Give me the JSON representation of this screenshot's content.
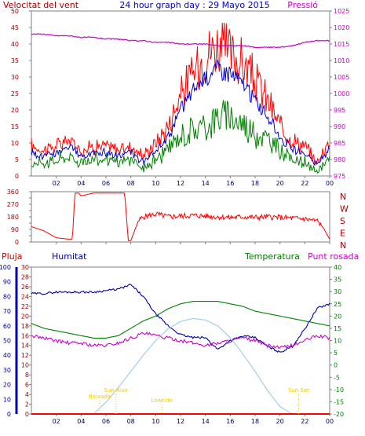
{
  "header": {
    "title": "24 hour graph day : 29 Mayo 2015",
    "left_label": "Velocitat del vent",
    "right_label": "Pressió"
  },
  "colors": {
    "frame": "#808080",
    "wind": "#ff0000",
    "wind_avg": "#0000cc",
    "wind_low": "#008000",
    "pressure": "#cc00cc",
    "direction": "#ff0000",
    "humidity": "#0000aa",
    "temperature": "#008000",
    "dewpoint": "#cc00cc",
    "rain": "#ff0000",
    "solar": "#99ccee",
    "annotation": "#eecc00",
    "title": "#0000cc",
    "dark_red": "#aa0000"
  },
  "chart_data": [
    {
      "id": "wind",
      "type": "line",
      "title": "24 hour graph day : 29 Mayo 2015",
      "x_ticks": [
        "02",
        "04",
        "06",
        "08",
        "10",
        "12",
        "14",
        "16",
        "18",
        "20",
        "22",
        "00"
      ],
      "ylabel_left": "Velocitat del vent",
      "ylim_left": [
        0,
        50
      ],
      "yticks_left": [
        0,
        5,
        10,
        15,
        20,
        25,
        30,
        35,
        40,
        45,
        50
      ],
      "ylabel_right": "Pressió",
      "ylim_right": [
        975,
        1025
      ],
      "yticks_right": [
        975,
        980,
        985,
        990,
        995,
        1000,
        1005,
        1010,
        1015,
        1020,
        1025
      ],
      "x_hours": [
        0,
        1,
        2,
        3,
        4,
        5,
        6,
        7,
        8,
        9,
        10,
        11,
        12,
        13,
        14,
        15,
        16,
        17,
        18,
        19,
        20,
        21,
        22,
        23,
        24
      ],
      "series": [
        {
          "role": "gust",
          "axis": "left",
          "values": [
            9,
            8,
            9,
            11,
            8,
            9,
            9,
            8,
            9,
            6,
            10,
            15,
            25,
            31,
            37,
            40,
            37,
            34,
            29,
            23,
            15,
            11,
            9,
            4,
            11
          ]
        },
        {
          "role": "average",
          "axis": "left",
          "values": [
            7,
            6,
            7,
            9,
            6,
            7,
            7,
            6,
            7,
            4,
            7,
            12,
            20,
            26,
            30,
            33,
            31,
            28,
            23,
            18,
            12,
            8,
            7,
            3,
            9
          ]
        },
        {
          "role": "low",
          "axis": "left",
          "values": [
            4,
            4,
            5,
            6,
            4,
            5,
            5,
            4,
            5,
            2,
            5,
            8,
            12,
            14,
            15,
            18,
            18,
            16,
            13,
            11,
            8,
            5,
            4,
            1,
            6
          ]
        },
        {
          "role": "pressure",
          "axis": "right",
          "values": [
            1018,
            1018,
            1017.5,
            1017.5,
            1017,
            1017,
            1016.5,
            1016.5,
            1016,
            1016,
            1015.5,
            1015.5,
            1015,
            1015,
            1015,
            1014.5,
            1014.5,
            1014.5,
            1014,
            1014,
            1014,
            1014.5,
            1015.5,
            1016,
            1016
          ]
        }
      ]
    },
    {
      "id": "direction",
      "type": "line",
      "ylim_left": [
        0,
        360
      ],
      "yticks_left": [
        0,
        45,
        90,
        135,
        180,
        225,
        270,
        315,
        360
      ],
      "ytick_labels_right": [
        "N",
        "W",
        "S",
        "E",
        "N"
      ],
      "x_hours": [
        0,
        1,
        2,
        3,
        3.3,
        3.5,
        3.8,
        4,
        5,
        6,
        7,
        7.5,
        7.8,
        8,
        8.3,
        8.6,
        9,
        10,
        11,
        12,
        13,
        14,
        15,
        16,
        17,
        18,
        19,
        20,
        21,
        22,
        23,
        23.5,
        24
      ],
      "values": [
        110,
        80,
        30,
        20,
        20,
        350,
        350,
        330,
        350,
        350,
        350,
        350,
        10,
        10,
        80,
        150,
        180,
        200,
        180,
        185,
        190,
        185,
        180,
        175,
        180,
        175,
        180,
        175,
        170,
        165,
        150,
        100,
        20
      ]
    },
    {
      "id": "climate",
      "type": "line",
      "ylabel_left_outer": "Pluja",
      "ylabel_left_inner": "Humitat",
      "ylabel_right": "Temperatura",
      "ylabel_right2": "Punt rosada",
      "ylim_rain": [
        0,
        30
      ],
      "yticks_rain": [
        0,
        2,
        4,
        6,
        8,
        10,
        12,
        14,
        16,
        18,
        20,
        22,
        24,
        26,
        28,
        30
      ],
      "ylim_humidity": [
        0,
        100
      ],
      "yticks_humidity": [
        0,
        10,
        20,
        30,
        40,
        50,
        60,
        70,
        80,
        90,
        100
      ],
      "ylim_temp": [
        -20,
        40
      ],
      "yticks_temp": [
        -20,
        -15,
        -10,
        -5,
        0,
        5,
        10,
        15,
        20,
        25,
        30,
        35,
        40
      ],
      "x_hours": [
        0,
        1,
        2,
        3,
        4,
        5,
        6,
        7,
        8,
        9,
        10,
        11,
        12,
        13,
        14,
        15,
        16,
        17,
        18,
        19,
        20,
        21,
        22,
        23,
        24
      ],
      "series": [
        {
          "name": "Humitat",
          "axis": "humidity",
          "values": [
            82,
            82,
            83,
            83,
            83,
            83,
            84,
            85,
            88,
            80,
            68,
            60,
            54,
            52,
            52,
            44,
            50,
            53,
            52,
            46,
            42,
            46,
            58,
            72,
            75
          ]
        },
        {
          "name": "Temperatura",
          "axis": "temp",
          "values": [
            17,
            15,
            14,
            13,
            12,
            11,
            11,
            12,
            15,
            18,
            20,
            23,
            25,
            26,
            26,
            26,
            25,
            24,
            22,
            21,
            20,
            19,
            18,
            17,
            16
          ]
        },
        {
          "name": "Punt rosada",
          "axis": "temp",
          "values": [
            12,
            11,
            10,
            9,
            9,
            8,
            8,
            9,
            11,
            13,
            12,
            11,
            10,
            9,
            8,
            9,
            10,
            11,
            10,
            8,
            7,
            8,
            10,
            12,
            11
          ]
        },
        {
          "name": "Solar",
          "axis": "humidity",
          "values": [
            0,
            0,
            0,
            0,
            0,
            0,
            8,
            18,
            29,
            40,
            50,
            58,
            63,
            65,
            64,
            60,
            52,
            41,
            29,
            16,
            5,
            0,
            0,
            0,
            0
          ]
        },
        {
          "name": "Pluja",
          "axis": "rain",
          "values": [
            0,
            0,
            0,
            0,
            0,
            0,
            0,
            0,
            0,
            0,
            0,
            0,
            0,
            0,
            0,
            0,
            0,
            0,
            0,
            0,
            0,
            0,
            0,
            0,
            0
          ]
        }
      ],
      "annotations": [
        {
          "label": "Baixada",
          "hour": 5.5
        },
        {
          "label": "Sun Rise",
          "hour": 6.8
        },
        {
          "label": "Lowtide",
          "hour": 10.5
        },
        {
          "label": "Sun Set",
          "hour": 21.5
        }
      ]
    }
  ]
}
